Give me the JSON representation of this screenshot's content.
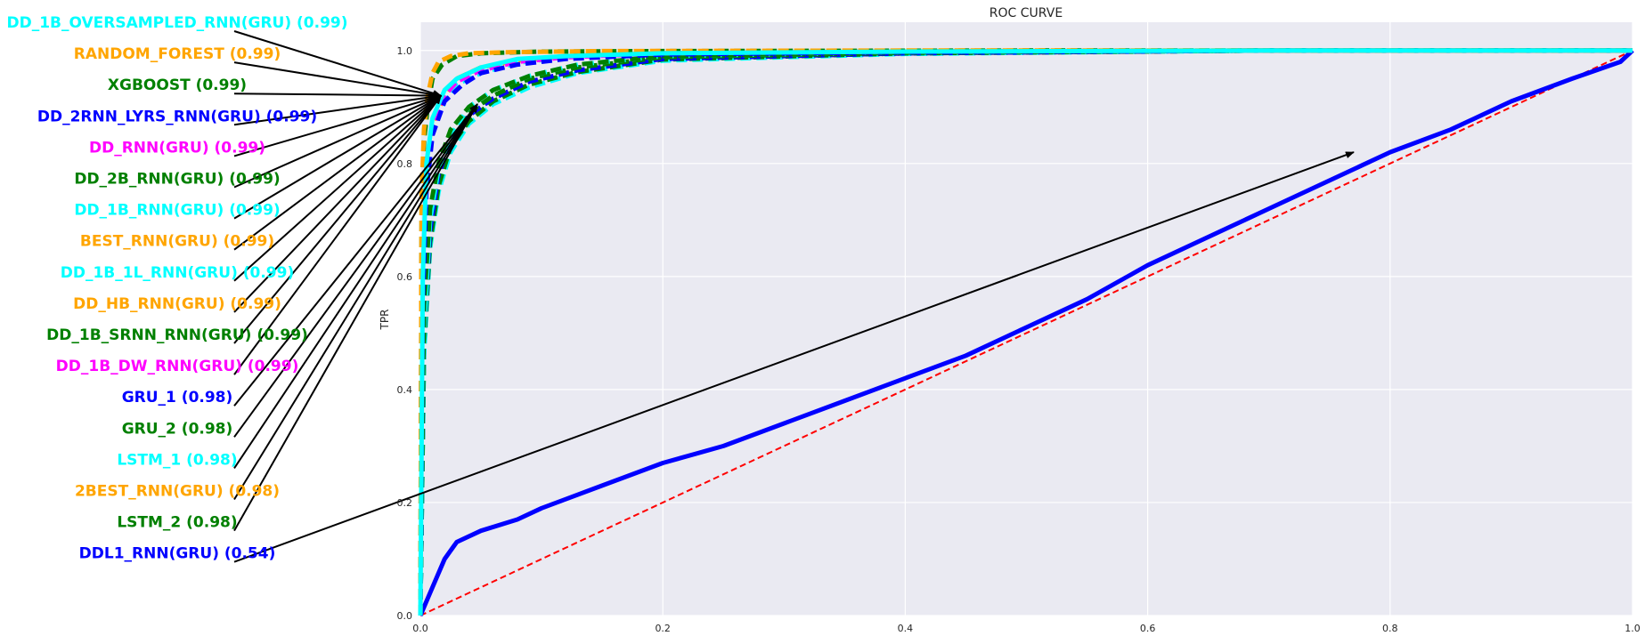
{
  "chart_data": {
    "type": "line",
    "title": "ROC CURVE",
    "xlabel": "",
    "ylabel": "TPR",
    "xlim": [
      0.0,
      1.0
    ],
    "ylim": [
      0.0,
      1.05
    ],
    "x_ticks": [
      "0.0",
      "0.2",
      "0.4",
      "0.6",
      "0.8",
      "1.0"
    ],
    "y_ticks": [
      "0.0",
      "0.2",
      "0.4",
      "0.6",
      "0.8",
      "1.0"
    ],
    "grid": true,
    "diagonal_color": "#ff0000",
    "arrow_color": "#000000",
    "series": [
      {
        "name": "DD_1B_OVERSAMPLED_RNN(GRU) (0.99)",
        "auc": 0.99,
        "color": "#00ffff",
        "dash": "solid",
        "label_anchor": [
          0.017,
          0.92
        ],
        "x": [
          0,
          0.002,
          0.005,
          0.01,
          0.02,
          0.03,
          0.05,
          0.08,
          0.12,
          0.2,
          0.4,
          0.7,
          1.0
        ],
        "y": [
          0,
          0.6,
          0.8,
          0.88,
          0.93,
          0.95,
          0.97,
          0.985,
          0.99,
          0.995,
          0.998,
          1.0,
          1.0
        ]
      },
      {
        "name": "RANDOM_FOREST (0.99)",
        "auc": 0.99,
        "color": "#ffa500",
        "dash": "dashed",
        "label_anchor": [
          0.017,
          0.92
        ],
        "x": [
          0,
          0.001,
          0.003,
          0.006,
          0.01,
          0.015,
          0.025,
          0.04,
          0.07,
          0.15,
          0.4,
          0.7,
          1.0
        ],
        "y": [
          0,
          0.75,
          0.86,
          0.92,
          0.96,
          0.98,
          0.99,
          0.995,
          0.997,
          0.999,
          1.0,
          1.0,
          1.0
        ]
      },
      {
        "name": "XGBOOST (0.99)",
        "auc": 0.99,
        "color": "#008000",
        "dash": "dashed",
        "label_anchor": [
          0.017,
          0.92
        ],
        "x": [
          0,
          0.001,
          0.003,
          0.006,
          0.01,
          0.018,
          0.03,
          0.05,
          0.1,
          0.2,
          0.5,
          1.0
        ],
        "y": [
          0,
          0.72,
          0.84,
          0.9,
          0.95,
          0.975,
          0.99,
          0.995,
          0.998,
          0.999,
          1.0,
          1.0
        ]
      },
      {
        "name": "DD_2RNN_LYRS_RNN(GRU) (0.99)",
        "auc": 0.99,
        "color": "#0000ff",
        "dash": "dashed",
        "label_anchor": [
          0.017,
          0.92
        ],
        "x": [
          0,
          0.002,
          0.005,
          0.01,
          0.02,
          0.035,
          0.05,
          0.08,
          0.12,
          0.2,
          0.4,
          0.7,
          1.0
        ],
        "y": [
          0,
          0.55,
          0.75,
          0.85,
          0.91,
          0.94,
          0.96,
          0.975,
          0.985,
          0.993,
          0.997,
          1.0,
          1.0
        ]
      },
      {
        "name": "DD_RNN(GRU) (0.99)",
        "auc": 0.99,
        "color": "#ff00ff",
        "dash": "dashed",
        "label_anchor": [
          0.017,
          0.92
        ],
        "x": [
          0,
          0.002,
          0.005,
          0.01,
          0.02,
          0.03,
          0.05,
          0.08,
          0.12,
          0.2,
          0.4,
          0.7,
          1.0
        ],
        "y": [
          0,
          0.6,
          0.78,
          0.86,
          0.92,
          0.945,
          0.965,
          0.98,
          0.988,
          0.995,
          0.998,
          1.0,
          1.0
        ]
      },
      {
        "name": "DD_2B_RNN(GRU) (0.99)",
        "auc": 0.99,
        "color": "#008000",
        "dash": "dashed",
        "label_anchor": [
          0.017,
          0.92
        ],
        "x": [
          0,
          0.003,
          0.008,
          0.015,
          0.025,
          0.04,
          0.06,
          0.09,
          0.13,
          0.2,
          0.4,
          0.7,
          1.0
        ],
        "y": [
          0,
          0.55,
          0.72,
          0.8,
          0.86,
          0.9,
          0.93,
          0.955,
          0.975,
          0.99,
          0.997,
          1.0,
          1.0
        ]
      },
      {
        "name": "DD_1B_RNN(GRU) (0.99)",
        "auc": 0.99,
        "color": "#00ffff",
        "dash": "dashed",
        "label_anchor": [
          0.017,
          0.92
        ],
        "x": [
          0,
          0.003,
          0.008,
          0.015,
          0.025,
          0.04,
          0.06,
          0.09,
          0.13,
          0.2,
          0.4,
          0.7,
          1.0
        ],
        "y": [
          0,
          0.5,
          0.7,
          0.79,
          0.85,
          0.9,
          0.93,
          0.955,
          0.975,
          0.99,
          0.997,
          1.0,
          1.0
        ]
      },
      {
        "name": "BEST_RNN(GRU) (0.99)",
        "auc": 0.99,
        "color": "#ffa500",
        "dash": "dashed",
        "label_anchor": [
          0.017,
          0.92
        ],
        "x": [
          0,
          0.002,
          0.005,
          0.01,
          0.02,
          0.03,
          0.05,
          0.08,
          0.12,
          0.2,
          0.4,
          0.7,
          1.0
        ],
        "y": [
          0,
          0.6,
          0.8,
          0.87,
          0.92,
          0.95,
          0.97,
          0.982,
          0.99,
          0.995,
          0.998,
          1.0,
          1.0
        ]
      },
      {
        "name": "DD_1B_1L_RNN(GRU) (0.99)",
        "auc": 0.99,
        "color": "#00ffff",
        "dash": "dashed",
        "label_anchor": [
          0.017,
          0.92
        ],
        "x": [
          0,
          0.002,
          0.005,
          0.01,
          0.02,
          0.03,
          0.05,
          0.08,
          0.12,
          0.2,
          0.4,
          0.7,
          1.0
        ],
        "y": [
          0,
          0.58,
          0.78,
          0.86,
          0.91,
          0.94,
          0.96,
          0.978,
          0.988,
          0.995,
          0.998,
          1.0,
          1.0
        ]
      },
      {
        "name": "DD_HB_RNN(GRU) (0.99)",
        "auc": 0.99,
        "color": "#ffa500",
        "dash": "dashed",
        "label_anchor": [
          0.017,
          0.92
        ],
        "x": [
          0,
          0.002,
          0.005,
          0.01,
          0.02,
          0.03,
          0.05,
          0.08,
          0.12,
          0.2,
          0.4,
          0.7,
          1.0
        ],
        "y": [
          0,
          0.62,
          0.8,
          0.87,
          0.92,
          0.95,
          0.97,
          0.983,
          0.99,
          0.995,
          0.998,
          1.0,
          1.0
        ]
      },
      {
        "name": "DD_1B_SRNN_RNN(GRU) (0.99)",
        "auc": 0.99,
        "color": "#008000",
        "dash": "dashed",
        "label_anchor": [
          0.017,
          0.92
        ],
        "x": [
          0,
          0.003,
          0.008,
          0.015,
          0.025,
          0.04,
          0.06,
          0.09,
          0.13,
          0.2,
          0.4,
          0.7,
          1.0
        ],
        "y": [
          0,
          0.52,
          0.7,
          0.79,
          0.85,
          0.89,
          0.92,
          0.95,
          0.97,
          0.988,
          0.996,
          1.0,
          1.0
        ]
      },
      {
        "name": "DD_1B_DW_RNN(GRU) (0.99)",
        "auc": 0.99,
        "color": "#ff00ff",
        "dash": "dashed",
        "label_anchor": [
          0.017,
          0.92
        ],
        "x": [
          0,
          0.002,
          0.005,
          0.01,
          0.02,
          0.03,
          0.05,
          0.08,
          0.12,
          0.2,
          0.4,
          0.7,
          1.0
        ],
        "y": [
          0,
          0.6,
          0.78,
          0.86,
          0.92,
          0.945,
          0.965,
          0.98,
          0.988,
          0.995,
          0.998,
          1.0,
          1.0
        ]
      },
      {
        "name": "GRU_1 (0.98)",
        "auc": 0.98,
        "color": "#0000ff",
        "dash": "dashed",
        "label_anchor": [
          0.047,
          0.905
        ],
        "x": [
          0,
          0.003,
          0.008,
          0.015,
          0.025,
          0.04,
          0.06,
          0.09,
          0.13,
          0.2,
          0.4,
          0.7,
          1.0
        ],
        "y": [
          0,
          0.5,
          0.68,
          0.78,
          0.84,
          0.885,
          0.915,
          0.945,
          0.965,
          0.985,
          0.995,
          1.0,
          1.0
        ]
      },
      {
        "name": "GRU_2 (0.98)",
        "auc": 0.98,
        "color": "#008000",
        "dash": "dashed",
        "label_anchor": [
          0.047,
          0.905
        ],
        "x": [
          0,
          0.003,
          0.008,
          0.015,
          0.025,
          0.04,
          0.06,
          0.09,
          0.13,
          0.2,
          0.4,
          0.7,
          1.0
        ],
        "y": [
          0,
          0.48,
          0.66,
          0.76,
          0.83,
          0.875,
          0.91,
          0.94,
          0.962,
          0.984,
          0.995,
          1.0,
          1.0
        ]
      },
      {
        "name": "LSTM_1 (0.98)",
        "auc": 0.98,
        "color": "#00ffff",
        "dash": "dashed",
        "label_anchor": [
          0.047,
          0.905
        ],
        "x": [
          0,
          0.003,
          0.008,
          0.015,
          0.025,
          0.04,
          0.06,
          0.09,
          0.13,
          0.2,
          0.4,
          0.7,
          1.0
        ],
        "y": [
          0,
          0.46,
          0.65,
          0.75,
          0.82,
          0.87,
          0.905,
          0.935,
          0.96,
          0.982,
          0.994,
          1.0,
          1.0
        ]
      },
      {
        "name": "2BEST_RNN(GRU) (0.98)",
        "auc": 0.98,
        "color": "#ffa500",
        "dash": "dashed",
        "label_anchor": [
          0.047,
          0.905
        ],
        "x": [
          0,
          0.003,
          0.008,
          0.015,
          0.025,
          0.04,
          0.06,
          0.09,
          0.13,
          0.2,
          0.4,
          0.7,
          1.0
        ],
        "y": [
          0,
          0.5,
          0.68,
          0.78,
          0.84,
          0.885,
          0.915,
          0.945,
          0.965,
          0.985,
          0.995,
          1.0,
          1.0
        ]
      },
      {
        "name": "LSTM_2 (0.98)",
        "auc": 0.98,
        "color": "#008000",
        "dash": "dashed",
        "label_anchor": [
          0.047,
          0.905
        ],
        "x": [
          0,
          0.003,
          0.008,
          0.015,
          0.025,
          0.04,
          0.06,
          0.09,
          0.13,
          0.2,
          0.4,
          0.7,
          1.0
        ],
        "y": [
          0,
          0.47,
          0.66,
          0.76,
          0.83,
          0.875,
          0.91,
          0.94,
          0.962,
          0.984,
          0.995,
          1.0,
          1.0
        ]
      },
      {
        "name": "DDL1_RNN(GRU) (0.54)",
        "auc": 0.54,
        "color": "#0000ff",
        "dash": "solid",
        "label_anchor": [
          0.77,
          0.82
        ],
        "x": [
          0,
          0.01,
          0.02,
          0.03,
          0.05,
          0.08,
          0.1,
          0.15,
          0.2,
          0.25,
          0.3,
          0.35,
          0.4,
          0.45,
          0.5,
          0.55,
          0.6,
          0.65,
          0.7,
          0.75,
          0.8,
          0.85,
          0.9,
          0.95,
          0.99,
          1.0
        ],
        "y": [
          0,
          0.05,
          0.1,
          0.13,
          0.15,
          0.17,
          0.19,
          0.23,
          0.27,
          0.3,
          0.34,
          0.38,
          0.42,
          0.46,
          0.51,
          0.56,
          0.62,
          0.67,
          0.72,
          0.77,
          0.82,
          0.86,
          0.91,
          0.95,
          0.98,
          1.0
        ]
      }
    ]
  }
}
